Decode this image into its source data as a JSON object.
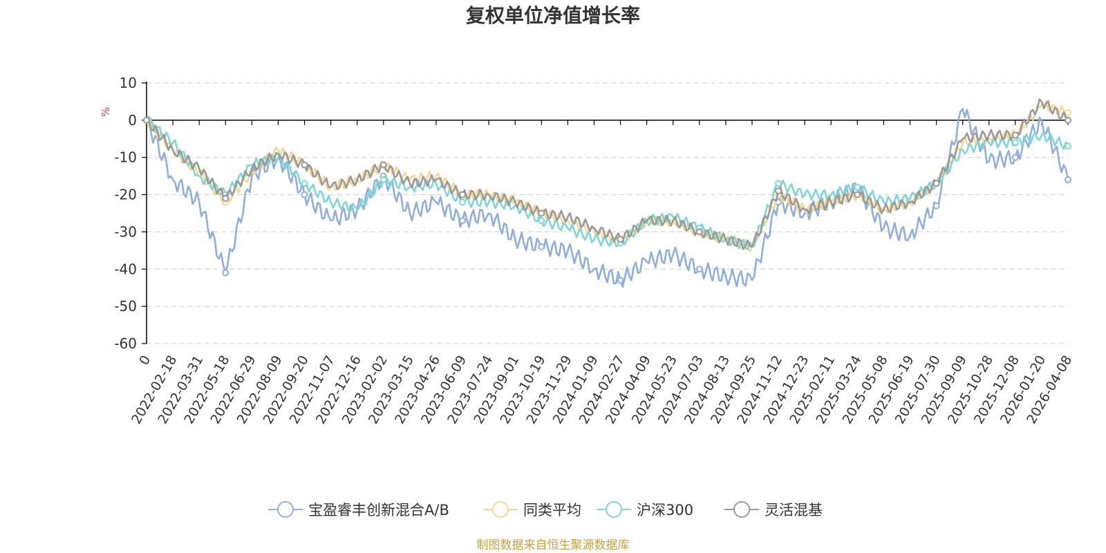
{
  "chart_data": {
    "type": "line",
    "title": "复权单位净值增长率",
    "ylabel": "%",
    "ylim": [
      -60,
      10
    ],
    "yticks": [
      10,
      0,
      -10,
      -20,
      -30,
      -40,
      -50,
      -60
    ],
    "grid": true,
    "legend_position": "bottom",
    "categories": [
      "0",
      "2022-02-18",
      "2022-03-31",
      "2022-05-18",
      "2022-06-29",
      "2022-08-09",
      "2022-09-20",
      "2022-11-07",
      "2022-12-16",
      "2023-02-02",
      "2023-03-15",
      "2023-04-26",
      "2023-06-09",
      "2023-07-24",
      "2023-09-01",
      "2023-10-19",
      "2023-11-29",
      "2024-01-09",
      "2024-02-27",
      "2024-04-09",
      "2024-05-23",
      "2024-07-03",
      "2024-08-13",
      "2024-09-25",
      "2024-11-12",
      "2024-12-23",
      "2025-02-11",
      "2025-03-24",
      "2025-05-08",
      "2025-06-19",
      "2025-07-30",
      "2025-09-09",
      "2025-10-28",
      "2025-12-08",
      "2026-01-20",
      "2026-04-08"
    ],
    "series": [
      {
        "name": "宝盈睿丰创新混合A/B",
        "color": "#8fadde",
        "values": [
          0,
          -16,
          -22,
          -41,
          -15,
          -10,
          -20,
          -27,
          -24,
          -15,
          -25,
          -22,
          -27,
          -25,
          -32,
          -34,
          -35,
          -40,
          -43,
          -38,
          -36,
          -40,
          -42,
          -43,
          -22,
          -25,
          -22,
          -18,
          -29,
          -31,
          -23,
          3,
          -11,
          -10,
          0,
          -16
        ]
      },
      {
        "name": "同类平均",
        "color": "#f7d794",
        "values": [
          0,
          -8,
          -14,
          -22,
          -14,
          -8,
          -12,
          -18,
          -16,
          -12,
          -16,
          -15,
          -20,
          -20,
          -22,
          -25,
          -27,
          -30,
          -33,
          -27,
          -27,
          -30,
          -32,
          -34,
          -20,
          -24,
          -22,
          -20,
          -24,
          -22,
          -17,
          -6,
          -5,
          -4,
          4,
          2
        ]
      },
      {
        "name": "沪深300",
        "color": "#7ed6d6",
        "values": [
          0,
          -6,
          -15,
          -20,
          -12,
          -10,
          -17,
          -22,
          -24,
          -16,
          -18,
          -17,
          -22,
          -22,
          -23,
          -27,
          -29,
          -32,
          -33,
          -27,
          -26,
          -29,
          -32,
          -34,
          -17,
          -20,
          -20,
          -18,
          -22,
          -21,
          -17,
          -8,
          -6,
          -6,
          -4,
          -7
        ]
      },
      {
        "name": "灵活混基",
        "color": "#999999",
        "values": [
          0,
          -8,
          -13,
          -21,
          -13,
          -9,
          -12,
          -18,
          -16,
          -12,
          -17,
          -16,
          -20,
          -20,
          -22,
          -25,
          -26,
          -29,
          -32,
          -27,
          -27,
          -30,
          -32,
          -34,
          -19,
          -24,
          -22,
          -20,
          -24,
          -22,
          -17,
          -5,
          -4,
          -4,
          5,
          0
        ]
      }
    ]
  },
  "legend": {
    "items": [
      "宝盈睿丰创新混合A/B",
      "同类平均",
      "沪深300",
      "灵活混基"
    ]
  },
  "footer": {
    "text": "制图数据来自恒生聚源数据库",
    "color": "#c8a03c"
  },
  "unit_color": "#e23b3b"
}
